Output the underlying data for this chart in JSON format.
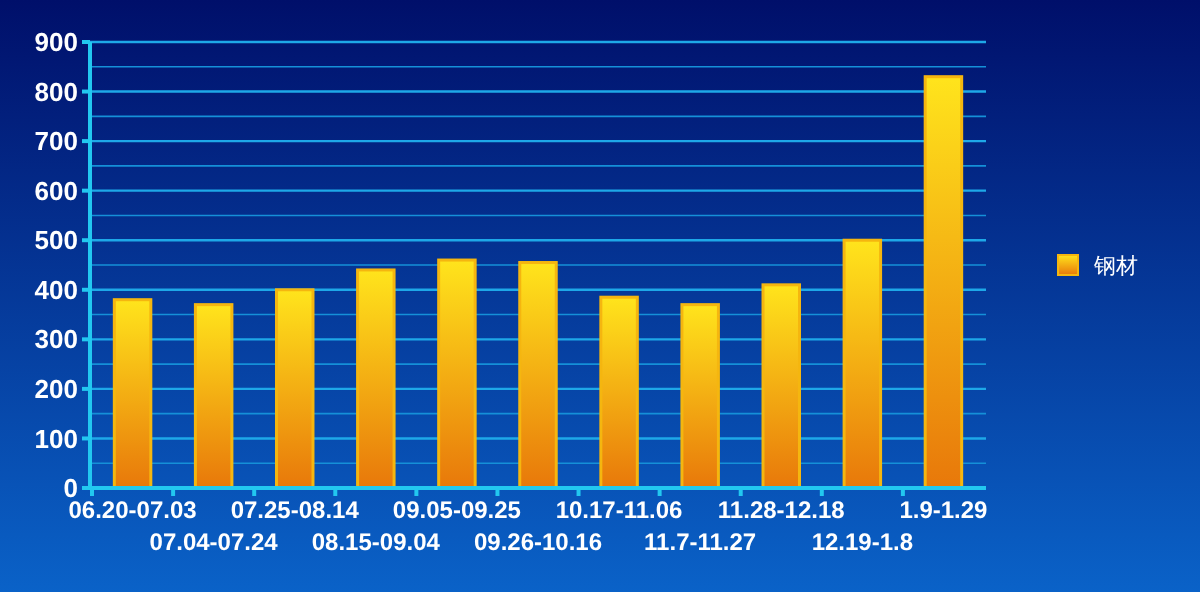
{
  "chart_data": {
    "type": "bar",
    "categories": [
      "06.20-07.03",
      "07.04-07.24",
      "07.25-08.14",
      "08.15-09.04",
      "09.05-09.25",
      "09.26-10.16",
      "10.17-11.06",
      "11.7-11.27",
      "11.28-12.18",
      "12.19-1.8",
      "1.9-1.29"
    ],
    "series": [
      {
        "name": "钢材",
        "color": "#f5b60f",
        "values": [
          380,
          370,
          400,
          440,
          460,
          455,
          385,
          370,
          410,
          500,
          830
        ]
      }
    ],
    "ylim": [
      0,
      900
    ],
    "yticks": [
      0,
      {
        "value": 50,
        "label": null
      },
      100,
      {
        "value": 150,
        "label": null
      },
      200,
      {
        "value": 250,
        "label": null
      },
      300,
      {
        "value": 350,
        "label": null
      },
      400,
      {
        "value": 450,
        "label": null
      },
      500,
      {
        "value": 550,
        "label": null
      },
      600,
      {
        "value": 650,
        "label": null
      },
      700,
      {
        "value": 750,
        "label": null
      },
      800,
      {
        "value": 850,
        "label": null
      },
      900
    ],
    "grid": "y",
    "legend": "right"
  }
}
